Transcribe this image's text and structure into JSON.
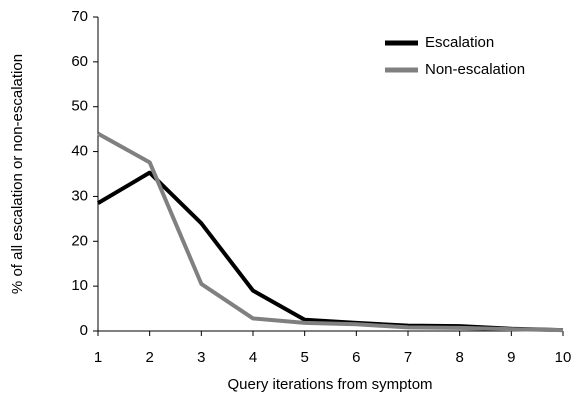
{
  "chart_data": {
    "type": "line",
    "x_label": "Query iterations from symptom",
    "y_label": "% of all escalation or non-escalation",
    "x": [
      1,
      2,
      3,
      4,
      5,
      6,
      7,
      8,
      9,
      10
    ],
    "series": [
      {
        "name": "Escalation",
        "color": "#000000",
        "values": [
          28.5,
          35.3,
          24,
          9,
          2.5,
          1.8,
          1.2,
          1.1,
          0.5,
          0.2
        ]
      },
      {
        "name": "Non-escalation",
        "color": "#808080",
        "values": [
          44,
          37.6,
          10.5,
          2.8,
          1.8,
          1.5,
          0.8,
          0.7,
          0.4,
          0.2
        ]
      }
    ],
    "xlim": [
      1,
      10
    ],
    "xticks": [
      1,
      2,
      3,
      4,
      5,
      6,
      7,
      8,
      9,
      10
    ],
    "ylim": [
      0,
      70
    ],
    "yticks": [
      0,
      10,
      20,
      30,
      40,
      50,
      60,
      70
    ],
    "grid": false,
    "legend": "upper right"
  }
}
